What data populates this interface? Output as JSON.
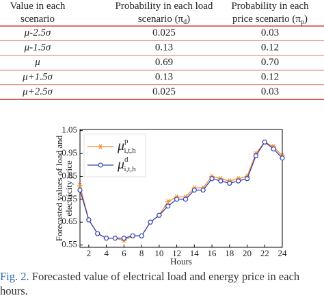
{
  "table": {
    "header": [
      [
        {
          "text": "Value in each"
        },
        {
          "text": "scenario"
        }
      ],
      [
        {
          "text": "Probability in each load"
        },
        {
          "text": "scenario (π",
          "sub": "d",
          "tail": ")"
        }
      ],
      [
        {
          "text": "Probability in each"
        },
        {
          "text": "price scenario (π",
          "sub": "p",
          "tail": ")"
        }
      ]
    ],
    "rows": [
      [
        "μ-2.5σ",
        "0.025",
        "0.03"
      ],
      [
        "μ-1.5σ",
        "0.13",
        "0.12"
      ],
      [
        "μ",
        "0.69",
        "0.70"
      ],
      [
        "μ+1.5σ",
        "0.13",
        "0.12"
      ],
      [
        "μ+2.5σ",
        "0.025",
        "0.03"
      ]
    ]
  },
  "chart_data": {
    "type": "line",
    "y_label": [
      "Forecasted values of load and",
      "electricity price"
    ],
    "x_label": "Hours",
    "x": [
      1,
      2,
      3,
      4,
      5,
      6,
      7,
      8,
      9,
      10,
      11,
      12,
      13,
      14,
      15,
      16,
      17,
      18,
      19,
      20,
      21,
      22,
      23,
      24
    ],
    "series": [
      {
        "name": "μ",
        "sup": "p",
        "sub": "i,t,h",
        "color": "#f28a2a",
        "marker": "star",
        "values": [
          0.81,
          0.66,
          0.6,
          0.58,
          0.58,
          0.57,
          0.59,
          0.59,
          0.65,
          0.68,
          0.74,
          0.76,
          0.76,
          0.8,
          0.8,
          0.85,
          0.84,
          0.83,
          0.84,
          0.85,
          0.95,
          1.0,
          0.98,
          0.94
        ]
      },
      {
        "name": "μ",
        "sup": "d",
        "sub": "i,t,h",
        "color": "#2a3fb8",
        "marker": "circle",
        "values": [
          0.79,
          0.66,
          0.6,
          0.58,
          0.58,
          0.58,
          0.59,
          0.59,
          0.65,
          0.68,
          0.72,
          0.75,
          0.75,
          0.79,
          0.79,
          0.84,
          0.83,
          0.82,
          0.83,
          0.84,
          0.94,
          1.0,
          0.97,
          0.93
        ]
      }
    ],
    "xlim": [
      1,
      24
    ],
    "xticks": [
      2,
      4,
      6,
      8,
      10,
      12,
      14,
      16,
      18,
      20,
      22,
      24
    ],
    "ylim": [
      0.54,
      1.055
    ],
    "yticks": [
      0.55,
      0.65,
      0.75,
      0.85,
      0.95,
      1.05
    ]
  },
  "caption": {
    "label": "Fig. 2.",
    "text": "Forecasted value of electrical load and energy price in each hours."
  }
}
